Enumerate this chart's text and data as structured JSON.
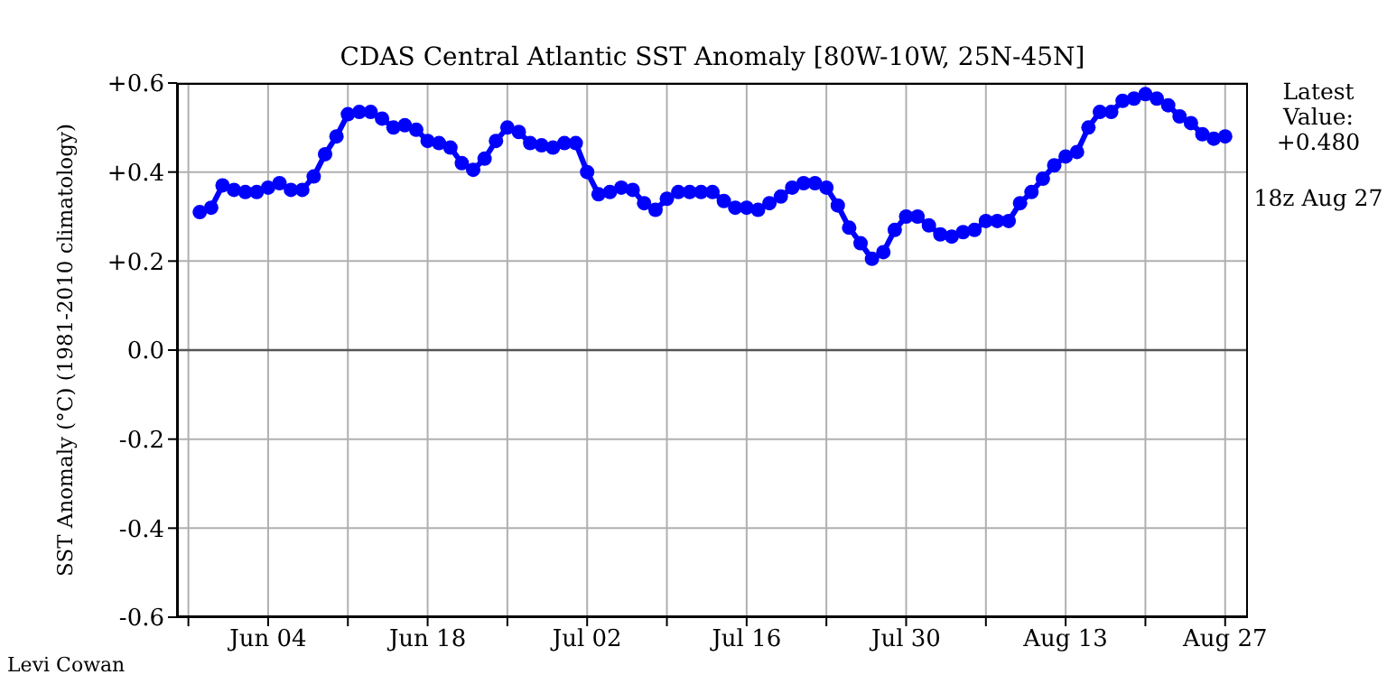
{
  "chart_data": {
    "type": "line",
    "title": "CDAS Central Atlantic SST Anomaly [80W-10W, 25N-45N]",
    "ylabel": "SST Anomaly (°C) (1981-2010 climatology)",
    "x": [
      "--05-29",
      "--05-30",
      "--05-31",
      "--06-01",
      "--06-02",
      "--06-03",
      "--06-04",
      "--06-05",
      "--06-06",
      "--06-07",
      "--06-08",
      "--06-09",
      "--06-10",
      "--06-11",
      "--06-12",
      "--06-13",
      "--06-14",
      "--06-15",
      "--06-16",
      "--06-17",
      "--06-18",
      "--06-19",
      "--06-20",
      "--06-21",
      "--06-22",
      "--06-23",
      "--06-24",
      "--06-25",
      "--06-26",
      "--06-27",
      "--06-28",
      "--06-29",
      "--06-30",
      "--07-01",
      "--07-02",
      "--07-03",
      "--07-04",
      "--07-05",
      "--07-06",
      "--07-07",
      "--07-08",
      "--07-09",
      "--07-10",
      "--07-11",
      "--07-12",
      "--07-13",
      "--07-14",
      "--07-15",
      "--07-16",
      "--07-17",
      "--07-18",
      "--07-19",
      "--07-20",
      "--07-21",
      "--07-22",
      "--07-23",
      "--07-24",
      "--07-25",
      "--07-26",
      "--07-27",
      "--07-28",
      "--07-29",
      "--07-30",
      "--07-31",
      "--08-01",
      "--08-02",
      "--08-03",
      "--08-04",
      "--08-05",
      "--08-06",
      "--08-07",
      "--08-08",
      "--08-09",
      "--08-10",
      "--08-11",
      "--08-12",
      "--08-13",
      "--08-14",
      "--08-15",
      "--08-16",
      "--08-17",
      "--08-18",
      "--08-19",
      "--08-20",
      "--08-21",
      "--08-22",
      "--08-23",
      "--08-24",
      "--08-25",
      "--08-26",
      "--08-27"
    ],
    "series": [
      {
        "color": "#0000ff",
        "values": [
          0.31,
          0.32,
          0.37,
          0.36,
          0.355,
          0.355,
          0.365,
          0.375,
          0.36,
          0.36,
          0.39,
          0.44,
          0.48,
          0.53,
          0.535,
          0.535,
          0.52,
          0.5,
          0.505,
          0.495,
          0.47,
          0.465,
          0.455,
          0.42,
          0.405,
          0.43,
          0.47,
          0.5,
          0.49,
          0.465,
          0.46,
          0.455,
          0.465,
          0.465,
          0.4,
          0.35,
          0.355,
          0.365,
          0.36,
          0.33,
          0.315,
          0.34,
          0.355,
          0.355,
          0.355,
          0.355,
          0.335,
          0.32,
          0.32,
          0.315,
          0.33,
          0.345,
          0.365,
          0.375,
          0.375,
          0.365,
          0.325,
          0.275,
          0.24,
          0.205,
          0.22,
          0.27,
          0.3,
          0.3,
          0.28,
          0.26,
          0.255,
          0.265,
          0.27,
          0.29,
          0.29,
          0.29,
          0.33,
          0.355,
          0.385,
          0.415,
          0.435,
          0.445,
          0.5,
          0.535,
          0.535,
          0.56,
          0.565,
          0.575,
          0.565,
          0.55,
          0.525,
          0.51,
          0.485,
          0.475,
          0.48
        ]
      }
    ],
    "xlim": [
      "--05-27",
      "--08-29"
    ],
    "xticks": [
      {
        "value": "--05-28",
        "label": null
      },
      {
        "value": "--06-04",
        "label": "Jun 04"
      },
      {
        "value": "--06-11",
        "label": null
      },
      {
        "value": "--06-18",
        "label": "Jun 18"
      },
      {
        "value": "--06-25",
        "label": null
      },
      {
        "value": "--07-02",
        "label": "Jul 02"
      },
      {
        "value": "--07-09",
        "label": null
      },
      {
        "value": "--07-16",
        "label": "Jul 16"
      },
      {
        "value": "--07-23",
        "label": null
      },
      {
        "value": "--07-30",
        "label": "Jul 30"
      },
      {
        "value": "--08-06",
        "label": null
      },
      {
        "value": "--08-13",
        "label": "Aug 13"
      },
      {
        "value": "--08-20",
        "label": null
      },
      {
        "value": "--08-27",
        "label": "Aug 27"
      }
    ],
    "ylim": [
      -0.6,
      0.6
    ],
    "yticks": [
      {
        "value": -0.6,
        "label": "-0.6"
      },
      {
        "value": -0.4,
        "label": "-0.4"
      },
      {
        "value": -0.2,
        "label": "-0.2"
      },
      {
        "value": 0,
        "label": "0.0"
      },
      {
        "value": 0.2,
        "label": "+0.2"
      },
      {
        "value": 0.4,
        "label": "+0.4"
      },
      {
        "value": 0.6,
        "label": "+0.6"
      }
    ],
    "ref_lines": [
      {
        "axis": "y",
        "value": 0,
        "color": "#555555"
      }
    ],
    "grid": true,
    "marker": "circle",
    "line_style": "solid",
    "legend": false,
    "annotations": [
      "Latest Value: +0.480",
      "18z Aug 27",
      "Levi Cowan"
    ]
  }
}
